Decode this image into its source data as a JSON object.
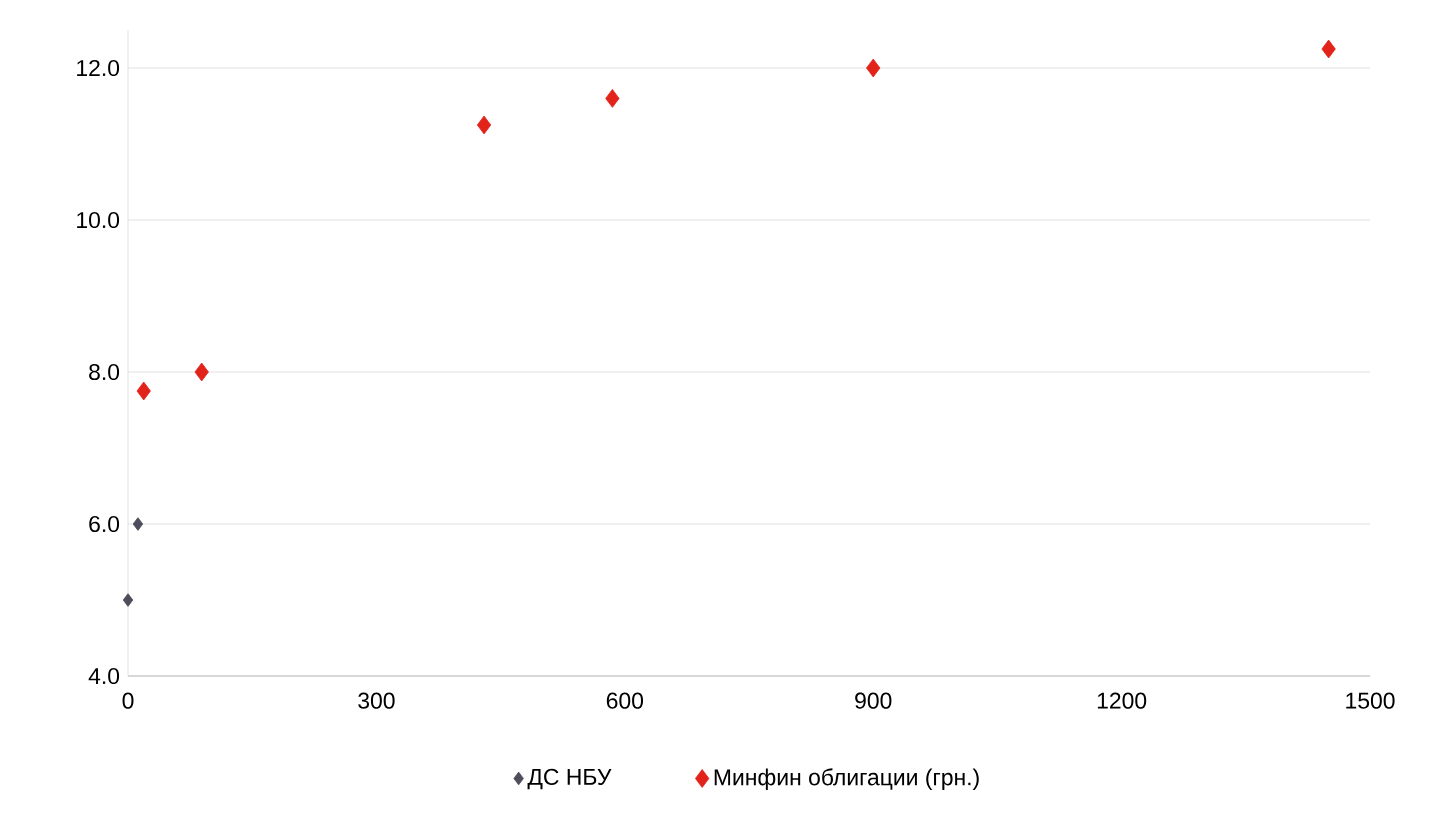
{
  "chart_data": {
    "type": "scatter",
    "marker": "diamond",
    "grid": "y",
    "legend": "bottom",
    "xlim": [
      0,
      1500
    ],
    "xticks": [
      0,
      300,
      600,
      900,
      1200,
      1500
    ],
    "ylim": [
      4,
      12.5
    ],
    "yticks": [
      {
        "value": 4,
        "label": "4.0"
      },
      {
        "value": 6,
        "label": "6.0"
      },
      {
        "value": 8,
        "label": "8.0"
      },
      {
        "value": 10,
        "label": "10.0"
      },
      {
        "value": 12,
        "label": "12.0"
      }
    ],
    "series": [
      {
        "name": "ДС НБУ",
        "color": "#4d4d5c",
        "x": [
          0,
          12
        ],
        "values": [
          5.0,
          6.0
        ]
      },
      {
        "name": "Минфин облигации (грн.)",
        "color": "#e2231a",
        "x": [
          19,
          89,
          430,
          585,
          900,
          1450
        ],
        "values": [
          7.75,
          8.0,
          11.25,
          11.6,
          12.0,
          12.25
        ]
      }
    ]
  }
}
